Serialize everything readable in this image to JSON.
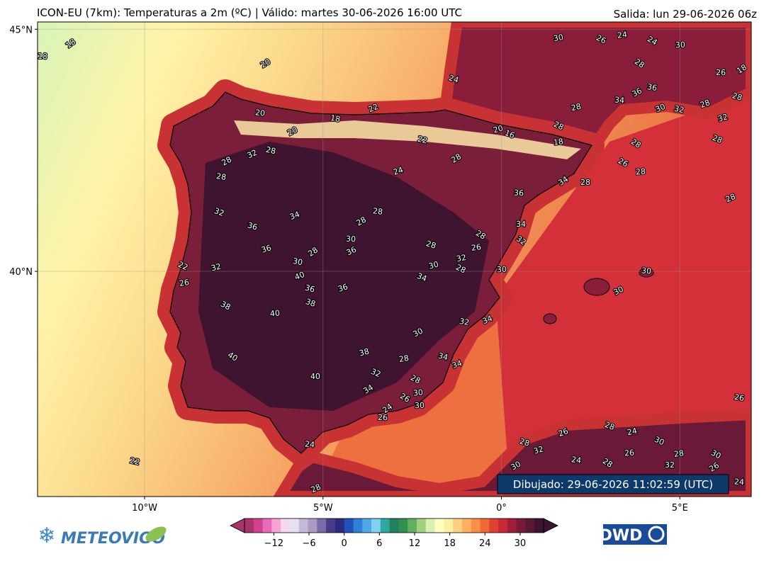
{
  "header": {
    "title": "ICON-EU (7km): Temperaturas a 2m (ºC) | Válido: martes 30-06-2026 16:00 UTC",
    "run": "Salida: lun 29-06-2026 06z"
  },
  "map": {
    "xlim": [
      -13,
      7
    ],
    "ylim": [
      35.35,
      45.15
    ],
    "grid": true,
    "xticks": [
      {
        "value": -10,
        "label": "10°W"
      },
      {
        "value": -5,
        "label": "5°W"
      },
      {
        "value": 0,
        "label": "0°"
      },
      {
        "value": 5,
        "label": "5°E"
      }
    ],
    "yticks": [
      {
        "value": 40,
        "label": "40°N"
      },
      {
        "value": 45,
        "label": "45°N"
      }
    ],
    "contour_labels": [
      18,
      18,
      20,
      20,
      20,
      18,
      22,
      22,
      24,
      24,
      20,
      16,
      30,
      26,
      24,
      24,
      30,
      28,
      26,
      18,
      34,
      36,
      36,
      30,
      32,
      28,
      28,
      32,
      28,
      28,
      28,
      18,
      26,
      28,
      28,
      28,
      34,
      36,
      28,
      28,
      32,
      28,
      34,
      36,
      36,
      32,
      32,
      22,
      26,
      38,
      40,
      40,
      40,
      28,
      30,
      28,
      28,
      36,
      30,
      40,
      36,
      36,
      38,
      38,
      32,
      28,
      28,
      30,
      26,
      30,
      24,
      26,
      34,
      24,
      30,
      32,
      34,
      34,
      34,
      28,
      30,
      34,
      32,
      28,
      26,
      28,
      30,
      32,
      34,
      28,
      30,
      30,
      26,
      28,
      22,
      26,
      28,
      32,
      28,
      24,
      30,
      28,
      30,
      26,
      28,
      32,
      26,
      24,
      30,
      24,
      28
    ]
  },
  "colorbar": {
    "lim": [
      -17,
      34
    ],
    "ticks": [
      {
        "value": -12,
        "label": "−12"
      },
      {
        "value": -6,
        "label": "−6"
      },
      0,
      6,
      12,
      18,
      24,
      30
    ],
    "colors": [
      "#a8346a",
      "#d3408e",
      "#ec6bb8",
      "#f7a3d8",
      "#f5d7ee",
      "#e6e0f0",
      "#c8b8d8",
      "#a89cc4",
      "#7b6aa8",
      "#4a3a8c",
      "#2a2a80",
      "#2050b8",
      "#3080d8",
      "#50a8e8",
      "#80d0f0",
      "#30a8a0",
      "#208060",
      "#309050",
      "#60b060",
      "#a0d080",
      "#d8f0b0",
      "#ffffc0",
      "#fff0a0",
      "#fdd080",
      "#fcb060",
      "#f89048",
      "#f06a38",
      "#e04030",
      "#c82838",
      "#a01c38",
      "#7a1838",
      "#581836",
      "#3c1430"
    ]
  },
  "footer": {
    "drawn": "Dibujado: 29-06-2026 11:02:59 (UTC)",
    "logo_left": "METEOVIGO",
    "logo_right": "DWD"
  }
}
